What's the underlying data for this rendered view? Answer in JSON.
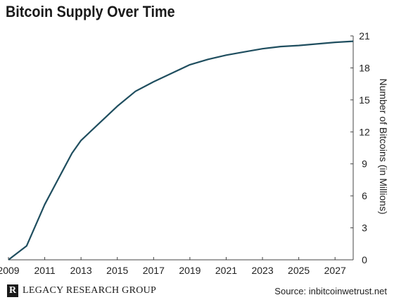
{
  "header": {
    "title": "Bitcoin Supply Over Time"
  },
  "footer": {
    "logo_mark": "R",
    "logo_text": "LEGACY RESEARCH GROUP",
    "source": "Source: inbitcoinwetrust.net"
  },
  "colors": {
    "line": "#1f4e5f",
    "axis": "#444444",
    "background": "#ffffff"
  },
  "chart_data": {
    "type": "line",
    "title": "Bitcoin Supply Over Time",
    "xlabel": "",
    "ylabel": "Number of Bitcoins (in Millions)",
    "xlim": [
      2009,
      2028
    ],
    "ylim": [
      0,
      21
    ],
    "xticks": [
      2009,
      2011,
      2013,
      2015,
      2017,
      2019,
      2021,
      2023,
      2025,
      2027
    ],
    "yticks": [
      0,
      3,
      6,
      9,
      12,
      15,
      18,
      21
    ],
    "y_axis_side": "right",
    "grid": false,
    "legend": "none",
    "series": [
      {
        "x": [
          2009,
          2010,
          2011,
          2012,
          2012.5,
          2013,
          2014,
          2015,
          2016,
          2017,
          2018,
          2019,
          2020,
          2021,
          2022,
          2023,
          2024,
          2025,
          2026,
          2027,
          2028
        ],
        "values": [
          0,
          1.3,
          5.2,
          8.4,
          10.0,
          11.2,
          12.8,
          14.4,
          15.8,
          16.7,
          17.5,
          18.3,
          18.8,
          19.2,
          19.5,
          19.8,
          20.0,
          20.1,
          20.25,
          20.4,
          20.5
        ]
      }
    ]
  }
}
